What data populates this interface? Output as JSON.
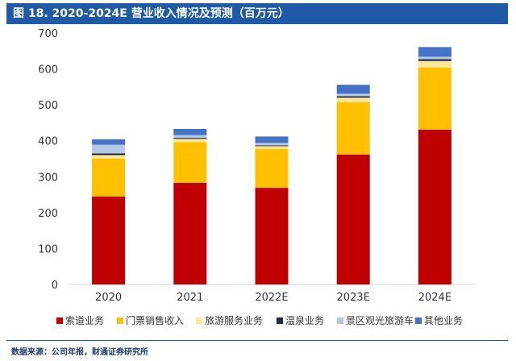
{
  "title": "图 18. 2020-2024E 营业收入情况及预测（百万元）",
  "source": "数据来源：公司年报，财通证券研究所",
  "colors": [
    "#c00000",
    "#ffc000",
    "#ffe699",
    "#1f2a44",
    "#b4c7e7",
    "#4472c4"
  ],
  "chart_data": {
    "type": "bar",
    "stacked": true,
    "title": "图 18. 2020-2024E 营业收入情况及预测（百万元）",
    "categories": [
      "2020",
      "2021",
      "2022E",
      "2023E",
      "2024E"
    ],
    "ylim": [
      0,
      700
    ],
    "yticks": [
      0,
      100,
      200,
      300,
      400,
      500,
      600,
      700
    ],
    "grid": false,
    "legend_position": "bottom",
    "series": [
      {
        "name": "索道业务",
        "values": [
          245,
          283,
          269,
          362,
          431
        ]
      },
      {
        "name": "门票销售收入",
        "values": [
          105,
          113,
          108,
          145,
          173
        ]
      },
      {
        "name": "旅游服务业务",
        "values": [
          10,
          9,
          8,
          13,
          18
        ]
      },
      {
        "name": "温泉业务",
        "values": [
          5,
          3,
          2,
          4,
          5
        ]
      },
      {
        "name": "景区观光旅游车",
        "values": [
          24,
          8,
          7,
          7,
          7
        ]
      },
      {
        "name": "其他业务",
        "values": [
          15,
          17,
          18,
          25,
          27
        ]
      }
    ]
  }
}
